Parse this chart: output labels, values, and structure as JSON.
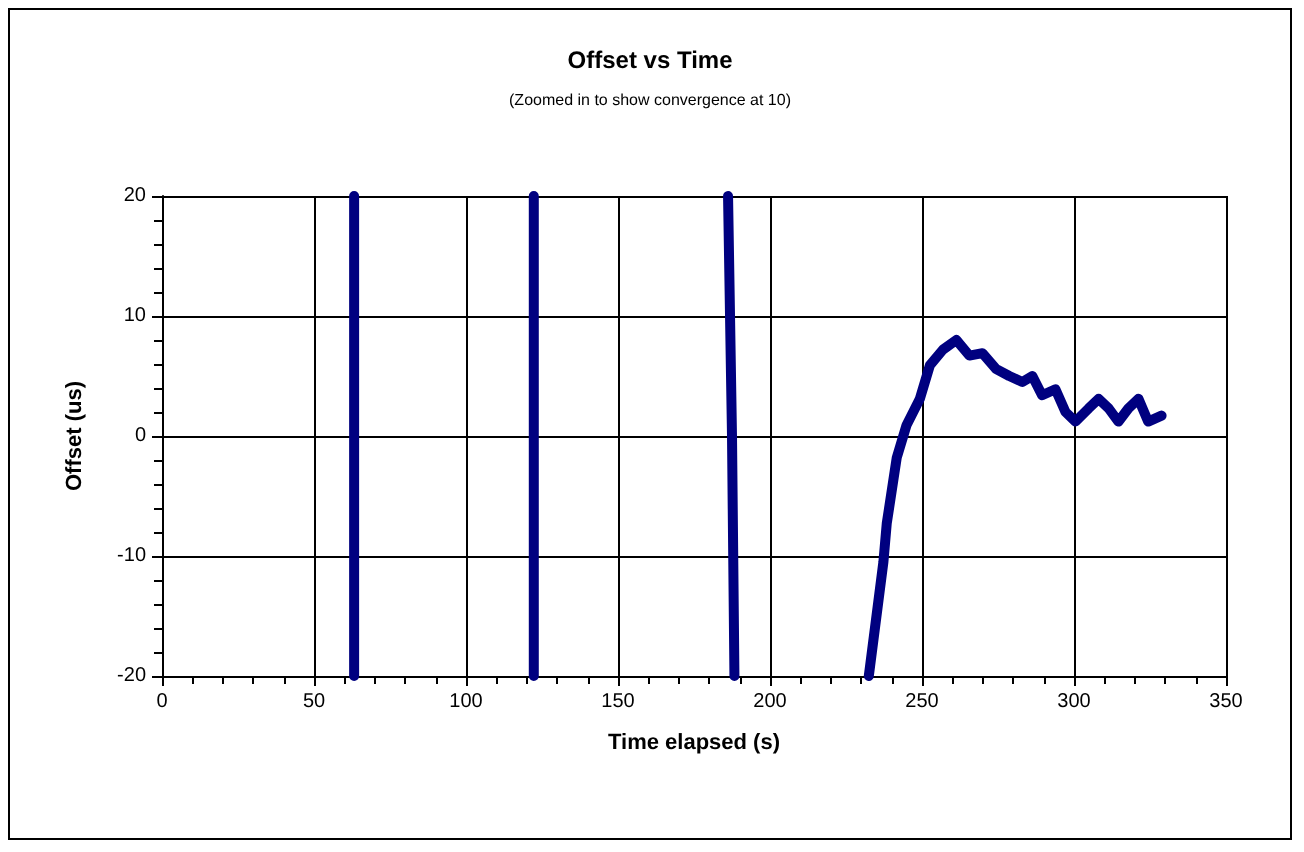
{
  "chart_data": {
    "type": "line",
    "title": "Offset vs Time",
    "subtitle": "(Zoomed in to show convergence at 10)",
    "xlabel": "Time elapsed (s)",
    "ylabel": "Offset (us)",
    "series": [
      {
        "color": "#000080",
        "x": [
          63.2,
          63.2,
          null,
          122.3,
          122.3,
          null,
          186.2,
          187.5,
          188.3,
          null,
          232.5,
          237.3,
          238.4,
          241.7,
          244.9,
          249.3,
          252.6,
          256.9,
          261.3,
          265.6,
          269.9,
          274.3,
          278.7,
          283,
          286.3,
          289.5,
          293.9,
          297.2,
          300.5,
          304.8,
          308.1,
          311.4,
          314.6,
          317.9,
          321.2,
          324.4,
          328.8
        ],
        "values": [
          -20,
          20,
          null,
          20,
          -20,
          null,
          20,
          0,
          -20,
          null,
          -20,
          -10.5,
          -7.3,
          -1.8,
          0.9,
          3.1,
          5.9,
          7.2,
          8.0,
          6.7,
          6.9,
          5.6,
          5.0,
          4.5,
          5.0,
          3.4,
          3.9,
          2.0,
          1.2,
          2.3,
          3.1,
          2.3,
          1.2,
          2.3,
          3.1,
          1.2,
          1.7
        ]
      }
    ],
    "xlim": [
      0,
      350
    ],
    "xticks": [
      0,
      50,
      100,
      150,
      200,
      250,
      300,
      350
    ],
    "ylim": [
      -20,
      20
    ],
    "yticks": [
      -20,
      -10,
      0,
      10,
      20
    ],
    "grid": true,
    "marker": "none",
    "line_style": "solid"
  }
}
